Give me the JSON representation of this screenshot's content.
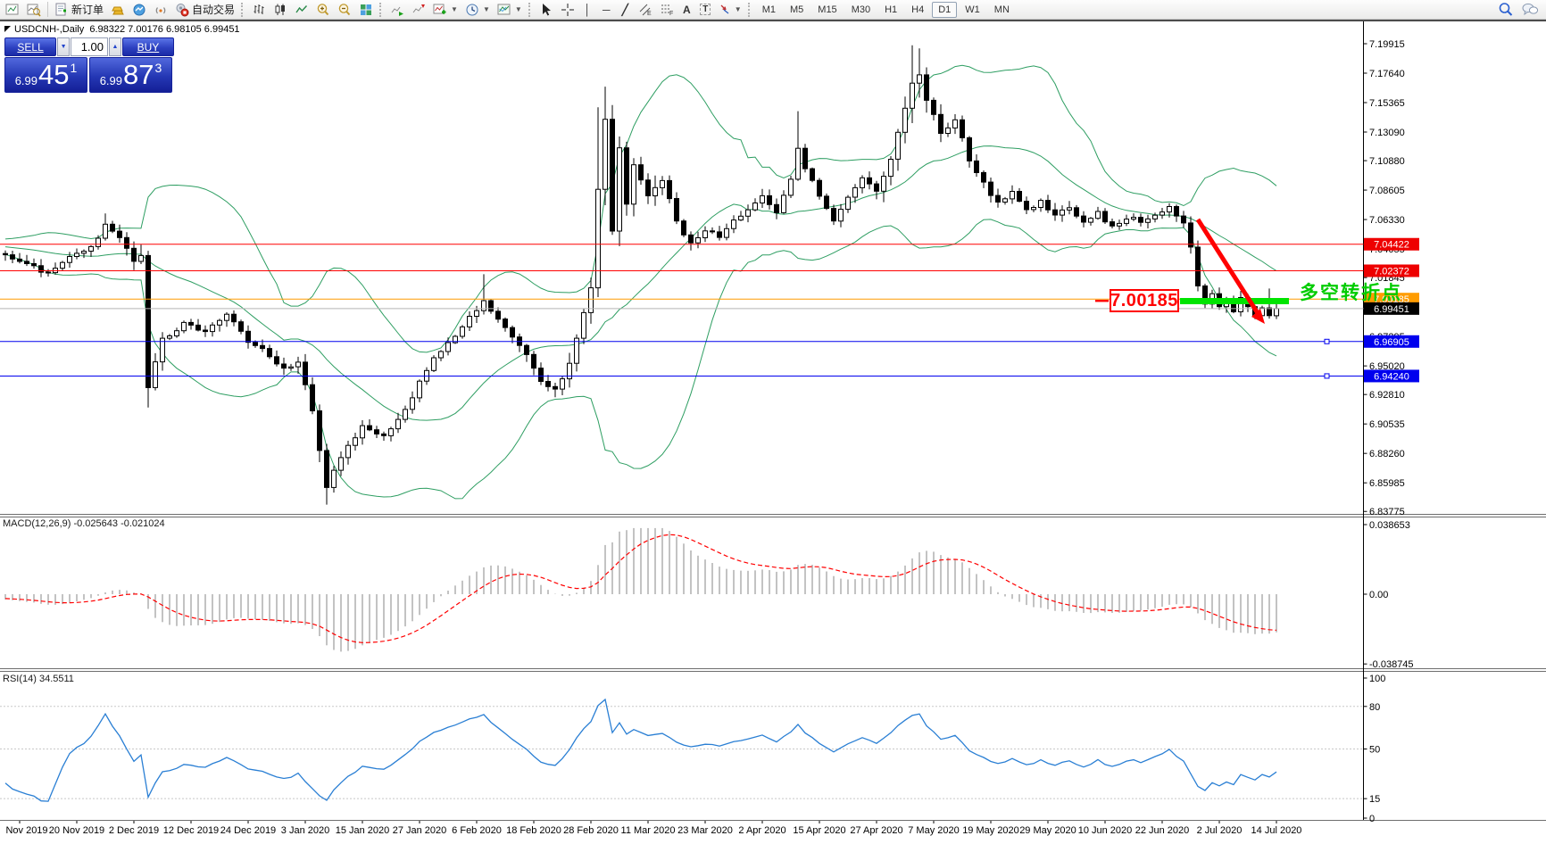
{
  "toolbar": {
    "new_order_label": "新订单",
    "autotrade_label": "自动交易",
    "timeframes": [
      "M1",
      "M5",
      "M15",
      "M30",
      "H1",
      "H4",
      "D1",
      "W1",
      "MN"
    ],
    "active_timeframe": "D1",
    "icon_glyphs": {
      "vline": "│",
      "hline": "─",
      "trendline": "╱",
      "channel": "E",
      "fibonacci": "F",
      "text_tool": "A",
      "label_tool": "T"
    }
  },
  "window": {
    "symbol_line": "USDCNH-,Daily  6.98322 7.00176 6.98105 6.99451"
  },
  "one_click": {
    "sell_label": "SELL",
    "buy_label": "BUY",
    "volume": "1.00",
    "sell_small": "6.99",
    "sell_big": "45",
    "sell_sup": "1",
    "buy_small": "6.99",
    "buy_big": "87",
    "buy_sup": "3"
  },
  "macd_pane": {
    "label": "MACD(12,26,9) -0.025643 -0.021024",
    "axis": [
      "0.038653",
      "0.00",
      "-0.038745"
    ]
  },
  "rsi_pane": {
    "label": "RSI(14) 34.5511",
    "axis": [
      "100",
      "80",
      "50",
      "15",
      "0"
    ],
    "levels": [
      80,
      50,
      15
    ]
  },
  "annotations": {
    "price_callout": "7.00185",
    "note_text": "多空转折点"
  },
  "chart_data": {
    "type": "candlestick",
    "symbol": "USDCNH-",
    "timeframe": "Daily",
    "ohlc_title": {
      "open": "6.98322",
      "high": "7.00176",
      "low": "6.98105",
      "close": "6.99451"
    },
    "indicators": [
      "Bollinger Bands",
      "MACD(12,26,9)",
      "RSI(14)"
    ],
    "price_axis_ticks": [
      "7.19915",
      "7.17640",
      "7.15365",
      "7.13090",
      "7.10880",
      "7.08605",
      "7.06330",
      "7.04055",
      "7.01845",
      "6.99570",
      "6.97295",
      "6.95020",
      "6.92810",
      "6.90535",
      "6.88260",
      "6.85985",
      "6.83775"
    ],
    "dates": [
      "Nov 2019",
      "20 Nov 2019",
      "2 Dec 2019",
      "12 Dec 2019",
      "24 Dec 2019",
      "3 Jan 2020",
      "15 Jan 2020",
      "27 Jan 2020",
      "6 Feb 2020",
      "18 Feb 2020",
      "28 Feb 2020",
      "11 Mar 2020",
      "23 Mar 2020",
      "2 Apr 2020",
      "15 Apr 2020",
      "27 Apr 2020",
      "7 May 2020",
      "19 May 2020",
      "29 May 2020",
      "10 Jun 2020",
      "22 Jun 2020",
      "2 Jul 2020",
      "14 Jul 2020"
    ],
    "levels": [
      {
        "price": 7.04422,
        "label": "7.04422",
        "color": "#ff0000",
        "tag_bg": "#ee0000",
        "handle": false
      },
      {
        "price": 7.02372,
        "label": "7.02372",
        "color": "#ff0000",
        "tag_bg": "#ee0000",
        "handle": false
      },
      {
        "price": 7.00185,
        "label": "7.00185",
        "color": "#ff9c00",
        "tag_bg": "#ff9c00",
        "handle": false
      },
      {
        "price": 6.96905,
        "label": "6.96905",
        "color": "#0000ee",
        "tag_bg": "#0000ee",
        "handle": true
      },
      {
        "price": 6.9424,
        "label": "6.94240",
        "color": "#0000ee",
        "tag_bg": "#0000ee",
        "handle": true
      }
    ],
    "current_price": {
      "value": 6.99451,
      "label": "6.99451",
      "line_color": "#b4b4b4",
      "tag_bg": "#000000"
    },
    "colors": {
      "up_candle": "#ffffff",
      "down_candle": "#000000",
      "outline": "#000000",
      "bollinger": "#2e9e62",
      "macd_hist": "#b4b4b4",
      "macd_signal": "#ff0000",
      "rsi_line": "#2a7fd4",
      "annotation_green": "#00e400",
      "annotation_arrow": "#ff0000"
    },
    "close_anchors": [
      [
        -60,
        7.068
      ],
      [
        -50,
        7.05
      ],
      [
        -40,
        7.06
      ],
      [
        -32,
        7.044
      ],
      [
        -24,
        7.054
      ],
      [
        -16,
        7.04
      ],
      [
        -8,
        7.047
      ],
      [
        -2,
        7.038
      ],
      [
        0,
        7.036
      ],
      [
        3,
        7.028
      ],
      [
        6,
        7.022
      ],
      [
        9,
        7.034
      ],
      [
        12,
        7.042
      ],
      [
        14,
        7.058
      ],
      [
        16,
        7.048
      ],
      [
        18,
        7.032
      ],
      [
        19,
        7.036
      ],
      [
        20,
        6.934
      ],
      [
        22,
        6.97
      ],
      [
        25,
        6.982
      ],
      [
        28,
        6.976
      ],
      [
        31,
        6.991
      ],
      [
        34,
        6.97
      ],
      [
        37,
        6.958
      ],
      [
        39,
        6.948
      ],
      [
        41,
        6.952
      ],
      [
        42,
        6.934
      ],
      [
        43,
        6.916
      ],
      [
        44,
        6.886
      ],
      [
        45,
        6.858
      ],
      [
        46,
        6.868
      ],
      [
        48,
        6.888
      ],
      [
        50,
        6.903
      ],
      [
        53,
        6.897
      ],
      [
        56,
        6.916
      ],
      [
        58,
        6.938
      ],
      [
        60,
        6.958
      ],
      [
        63,
        6.972
      ],
      [
        65,
        6.988
      ],
      [
        67,
        7.0
      ],
      [
        69,
        6.986
      ],
      [
        71,
        6.972
      ],
      [
        73,
        6.96
      ],
      [
        75,
        6.94
      ],
      [
        77,
        6.931
      ],
      [
        79,
        6.952
      ],
      [
        81,
        6.992
      ],
      [
        82,
        7.012
      ],
      [
        83,
        7.086
      ],
      [
        84,
        7.14
      ],
      [
        85,
        7.056
      ],
      [
        86,
        7.118
      ],
      [
        87,
        7.076
      ],
      [
        88,
        7.104
      ],
      [
        90,
        7.082
      ],
      [
        92,
        7.094
      ],
      [
        94,
        7.062
      ],
      [
        96,
        7.044
      ],
      [
        98,
        7.056
      ],
      [
        100,
        7.048
      ],
      [
        102,
        7.062
      ],
      [
        104,
        7.072
      ],
      [
        106,
        7.082
      ],
      [
        108,
        7.07
      ],
      [
        110,
        7.096
      ],
      [
        111,
        7.118
      ],
      [
        112,
        7.104
      ],
      [
        114,
        7.08
      ],
      [
        116,
        7.062
      ],
      [
        118,
        7.082
      ],
      [
        120,
        7.095
      ],
      [
        122,
        7.086
      ],
      [
        124,
        7.11
      ],
      [
        126,
        7.15
      ],
      [
        127,
        7.168
      ],
      [
        128,
        7.176
      ],
      [
        129,
        7.155
      ],
      [
        131,
        7.131
      ],
      [
        133,
        7.14
      ],
      [
        135,
        7.11
      ],
      [
        137,
        7.091
      ],
      [
        139,
        7.076
      ],
      [
        141,
        7.086
      ],
      [
        143,
        7.07
      ],
      [
        145,
        7.078
      ],
      [
        147,
        7.066
      ],
      [
        149,
        7.074
      ],
      [
        151,
        7.061
      ],
      [
        153,
        7.068
      ],
      [
        155,
        7.058
      ],
      [
        157,
        7.065
      ],
      [
        159,
        7.062
      ],
      [
        161,
        7.068
      ],
      [
        163,
        7.073
      ],
      [
        165,
        7.06
      ],
      [
        166,
        7.042
      ],
      [
        167,
        7.012
      ],
      [
        168,
        6.998
      ],
      [
        169,
        7.006
      ],
      [
        170,
        6.996
      ],
      [
        171,
        7.0
      ],
      [
        172,
        6.992
      ],
      [
        173,
        7.003
      ],
      [
        174,
        6.996
      ],
      [
        175,
        6.989
      ],
      [
        176,
        6.995
      ],
      [
        177,
        6.989
      ],
      [
        178,
        6.9945
      ]
    ],
    "wick_overrides": {
      "14": {
        "high": 7.068
      },
      "20": {
        "low": 6.918
      },
      "45": {
        "low": 6.843
      },
      "67": {
        "high": 7.021
      },
      "83": {
        "high": 7.15
      },
      "84": {
        "high": 7.166
      },
      "111": {
        "high": 7.147
      },
      "127": {
        "high": 7.198
      },
      "128": {
        "high": 7.1955
      },
      "177": {
        "high": 7.01
      }
    },
    "macd_current": {
      "macd": "-0.025643",
      "signal": "-0.021024"
    },
    "rsi_current": "34.5511"
  }
}
